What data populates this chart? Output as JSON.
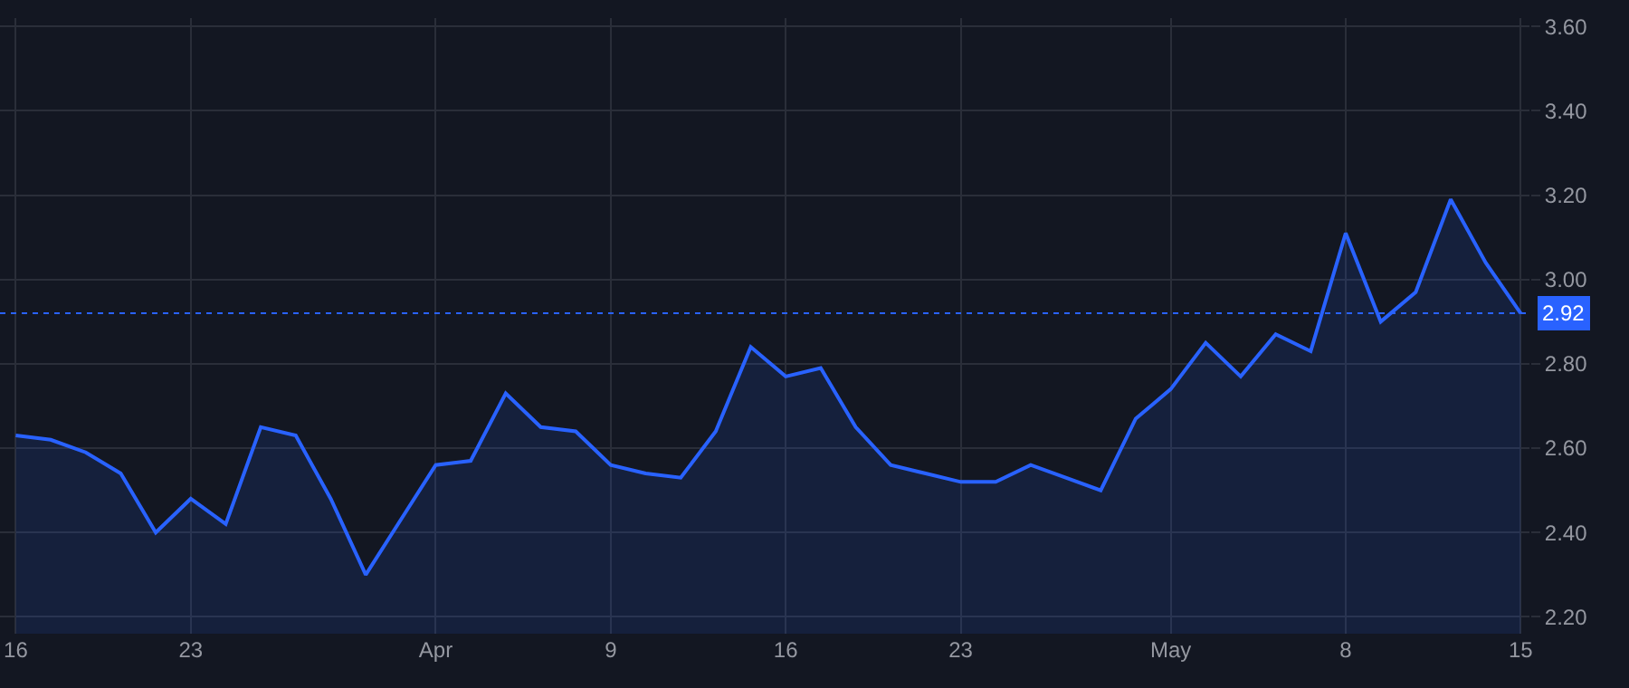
{
  "chart_data": {
    "type": "area",
    "categories": [
      "16",
      null,
      null,
      null,
      null,
      "23",
      null,
      null,
      null,
      null,
      null,
      null,
      "Apr",
      null,
      null,
      null,
      null,
      "9",
      null,
      null,
      null,
      null,
      "16",
      null,
      null,
      null,
      null,
      "23",
      null,
      null,
      null,
      null,
      null,
      "May",
      null,
      null,
      null,
      null,
      "8",
      null,
      null,
      null,
      null,
      "15"
    ],
    "series": [
      {
        "color": "#2962ff",
        "values": [
          2.63,
          2.62,
          2.59,
          2.54,
          2.4,
          2.48,
          2.42,
          2.65,
          2.63,
          2.48,
          2.3,
          2.43,
          2.56,
          2.57,
          2.73,
          2.65,
          2.64,
          2.56,
          2.54,
          2.53,
          2.64,
          2.84,
          2.77,
          2.79,
          2.65,
          2.56,
          2.54,
          2.52,
          2.52,
          2.56,
          2.53,
          2.5,
          2.67,
          2.74,
          2.85,
          2.77,
          2.87,
          2.83,
          3.11,
          2.9,
          2.97,
          3.19,
          3.04,
          2.92
        ]
      }
    ],
    "ylim": [
      2.16,
      3.62
    ],
    "yticks": [
      {
        "value": 2.2,
        "label": "2.20"
      },
      {
        "value": 2.4,
        "label": "2.40"
      },
      {
        "value": 2.6,
        "label": "2.60"
      },
      {
        "value": 2.8,
        "label": "2.80"
      },
      {
        "value": 3.0,
        "label": "3.00"
      },
      {
        "value": 3.2,
        "label": "3.20"
      },
      {
        "value": 3.4,
        "label": "3.40"
      },
      {
        "value": 3.6,
        "label": "3.60"
      }
    ],
    "ref_lines": [
      {
        "axis": "y",
        "value": 2.92,
        "label": "2.92",
        "color": "#2962ff",
        "line_style": "dotted"
      }
    ],
    "grid": true
  }
}
